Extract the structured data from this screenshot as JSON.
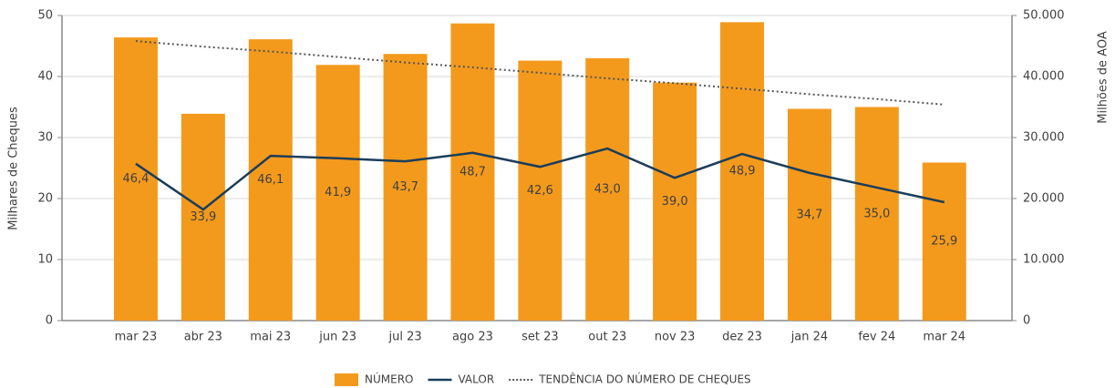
{
  "chart_data": {
    "type": "bar",
    "ylabel": "Milhares de Cheques",
    "y2label": "Milhões de AOA",
    "categories": [
      "mar 23",
      "abr 23",
      "mai 23",
      "jun 23",
      "jul 23",
      "ago 23",
      "set 23",
      "out 23",
      "nov 23",
      "dez 23",
      "jan 24",
      "fev 24",
      "mar 24"
    ],
    "series": [
      {
        "name": "NÚMERO",
        "type": "bar",
        "color": "#f39a1d",
        "values": [
          46.4,
          33.9,
          46.1,
          41.9,
          43.7,
          48.7,
          42.6,
          43.0,
          39.0,
          48.9,
          34.7,
          35.0,
          25.9
        ],
        "value_labels": [
          "46,4",
          "33,9",
          "46,1",
          "41,9",
          "43,7",
          "48,7",
          "42,6",
          "43,0",
          "39,0",
          "48,9",
          "34,7",
          "35,0",
          "25,9"
        ]
      },
      {
        "name": "VALOR",
        "type": "line",
        "axis": "y2",
        "color": "#1b3d5a",
        "values": [
          25700,
          18200,
          27000,
          26600,
          26100,
          27500,
          25200,
          28200,
          23400,
          27300,
          24200,
          21800,
          19400
        ]
      },
      {
        "name": "TENDÊNCIA DO NÚMERO DE CHEQUES",
        "type": "line",
        "linestyle": "dotted",
        "color": "#555555",
        "values": [
          45.8,
          44.9,
          44.1,
          43.2,
          42.3,
          41.5,
          40.6,
          39.7,
          38.9,
          38.0,
          37.1,
          36.3,
          35.4
        ]
      }
    ],
    "ylim": [
      0,
      50
    ],
    "yticks": [
      0,
      10,
      20,
      30,
      40,
      50
    ],
    "y2lim": [
      0,
      50000
    ],
    "y2ticks": [
      0,
      {
        "value": 10000,
        "label": "10.000"
      },
      {
        "value": 20000,
        "label": "20.000"
      },
      {
        "value": 30000,
        "label": "30.000"
      },
      {
        "value": 40000,
        "label": "40.000"
      },
      {
        "value": 50000,
        "label": "50.000"
      }
    ],
    "grid": true,
    "legend": "bottom"
  }
}
